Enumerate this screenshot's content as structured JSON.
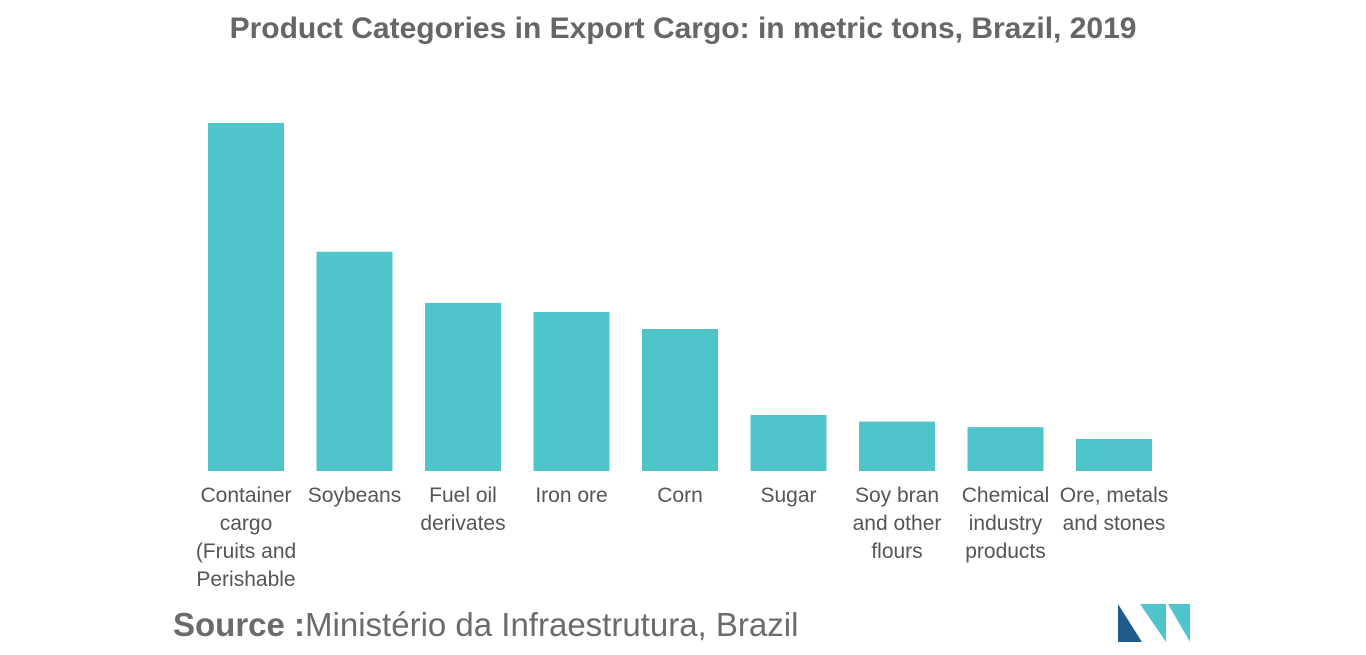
{
  "title": "Product Categories in Export Cargo: in metric tons, Brazil, 2019",
  "source": {
    "label": "Source :",
    "text": "Ministério da Infraestrutura, Brazil"
  },
  "colors": {
    "bar": "#4FC4CA",
    "logo_dark": "#1F5C8C",
    "logo_light": "#4FC4CA"
  },
  "logo": {
    "name": "mordor-intelligence-logo"
  },
  "chart_data": {
    "type": "bar",
    "title": "Product Categories in Export Cargo: in metric tons, Brazil, 2019",
    "xlabel": "",
    "ylabel": "",
    "grid": false,
    "legend": "none",
    "categories": [
      [
        "Container",
        "cargo",
        "(Fruits and",
        "Perishable"
      ],
      [
        "Soybeans"
      ],
      [
        "Fuel oil",
        "derivates"
      ],
      [
        "Iron ore"
      ],
      [
        "Corn"
      ],
      [
        "Sugar"
      ],
      [
        "Soy bran",
        "and other",
        "flours"
      ],
      [
        "Chemical",
        "industry",
        "products"
      ],
      [
        "Ore, metals",
        "and stones"
      ]
    ],
    "values": [
      100,
      63,
      48.3,
      45.7,
      40.8,
      16.1,
      14.2,
      12.6,
      9.2
    ],
    "ylim": [
      0,
      100
    ]
  }
}
